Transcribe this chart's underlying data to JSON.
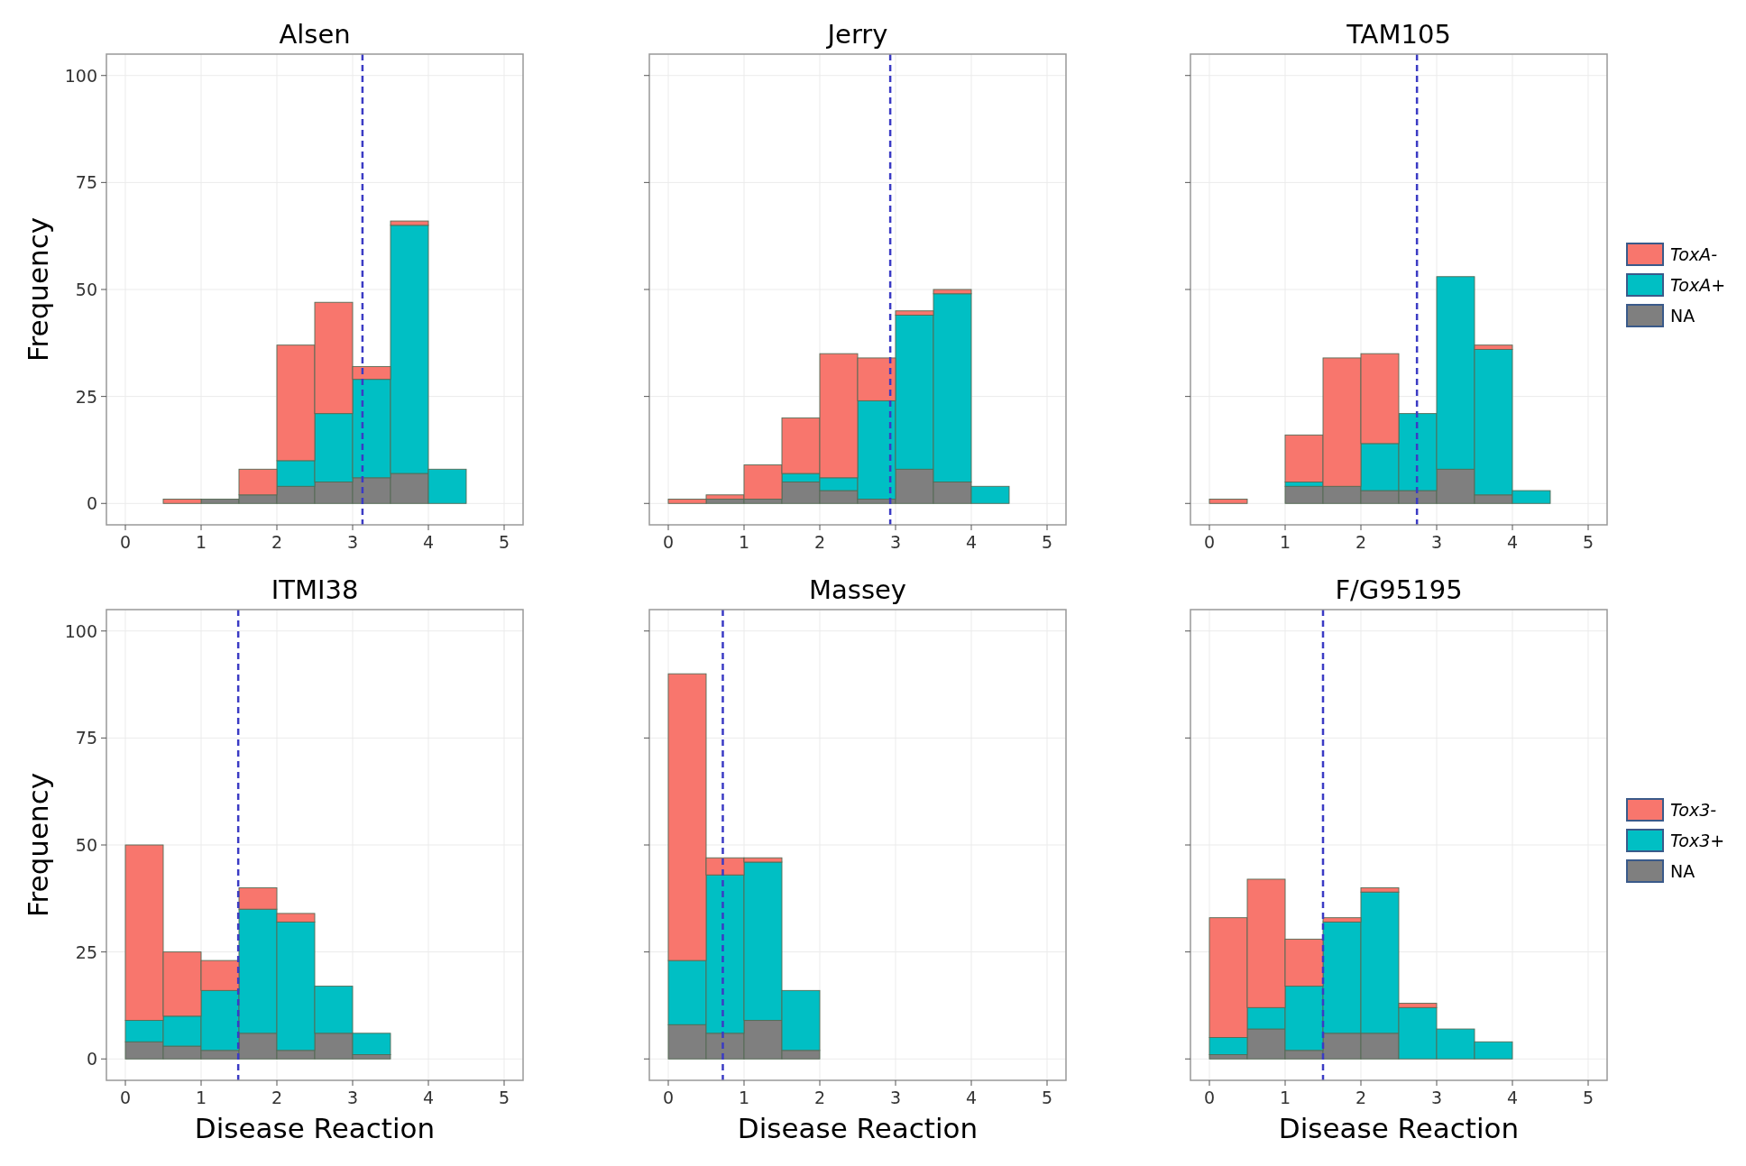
{
  "chart_data": [
    {
      "type": "bar",
      "title": "Alsen",
      "ylabel": "Frequency",
      "x": [
        0.25,
        0.75,
        1.25,
        1.75,
        2.25,
        2.75,
        3.25,
        3.75,
        4.25,
        4.75
      ],
      "stacked": true,
      "xlim": [
        -0.25,
        5.25
      ],
      "ylim": [
        -5,
        105
      ],
      "xticks": [
        0,
        1,
        2,
        3,
        4,
        5
      ],
      "yticks": [
        0,
        25,
        50,
        75,
        100
      ],
      "grid": true,
      "series": [
        {
          "color": "#7f7f7f",
          "values": [
            0,
            0,
            1,
            2,
            4,
            5,
            6,
            7,
            0,
            0
          ]
        },
        {
          "color": "#00bfc4",
          "values": [
            0,
            0,
            0,
            0,
            6,
            16,
            23,
            58,
            8,
            0
          ]
        },
        {
          "color": "#f8766d",
          "values": [
            0,
            1,
            0,
            6,
            27,
            26,
            3,
            1,
            0,
            0
          ]
        }
      ],
      "ref_lines": [
        {
          "axis": "x",
          "value": 3.13,
          "color": "#3b3bc4",
          "line_style": "dashed"
        }
      ]
    },
    {
      "type": "bar",
      "title": "Jerry",
      "x": [
        0.25,
        0.75,
        1.25,
        1.75,
        2.25,
        2.75,
        3.25,
        3.75,
        4.25,
        4.75
      ],
      "stacked": true,
      "xlim": [
        -0.25,
        5.25
      ],
      "ylim": [
        -5,
        105
      ],
      "xticks": [
        0,
        1,
        2,
        3,
        4,
        5
      ],
      "yticks": [
        0,
        25,
        50,
        75,
        100
      ],
      "grid": true,
      "tick_labels": "x",
      "series": [
        {
          "color": "#7f7f7f",
          "values": [
            0,
            1,
            1,
            5,
            3,
            1,
            8,
            5,
            0,
            0
          ]
        },
        {
          "color": "#00bfc4",
          "values": [
            0,
            0,
            0,
            2,
            3,
            23,
            36,
            44,
            4,
            0
          ]
        },
        {
          "color": "#f8766d",
          "values": [
            1,
            1,
            8,
            13,
            29,
            10,
            1,
            1,
            0,
            0
          ]
        }
      ],
      "ref_lines": [
        {
          "axis": "x",
          "value": 2.93,
          "color": "#3b3bc4",
          "line_style": "dashed"
        }
      ]
    },
    {
      "type": "bar",
      "title": "TAM105",
      "x": [
        0.25,
        0.75,
        1.25,
        1.75,
        2.25,
        2.75,
        3.25,
        3.75,
        4.25,
        4.75
      ],
      "stacked": true,
      "xlim": [
        -0.25,
        5.25
      ],
      "ylim": [
        -5,
        105
      ],
      "xticks": [
        0,
        1,
        2,
        3,
        4,
        5
      ],
      "yticks": [
        0,
        25,
        50,
        75,
        100
      ],
      "grid": true,
      "tick_labels": "x",
      "legend": "right",
      "series": [
        {
          "name": "NA",
          "color": "#7f7f7f",
          "values": [
            0,
            0,
            4,
            4,
            3,
            3,
            8,
            2,
            0,
            0
          ]
        },
        {
          "name": "ToxA+",
          "color": "#00bfc4",
          "values": [
            0,
            0,
            1,
            0,
            11,
            18,
            45,
            34,
            3,
            0
          ]
        },
        {
          "name": "ToxA-",
          "color": "#f8766d",
          "values": [
            1,
            0,
            11,
            30,
            21,
            0,
            0,
            1,
            0,
            0
          ]
        }
      ],
      "ref_lines": [
        {
          "axis": "x",
          "value": 2.74,
          "color": "#3b3bc4",
          "line_style": "dashed"
        }
      ]
    },
    {
      "type": "bar",
      "title": "ITMI38",
      "xlabel": "Disease Reaction",
      "ylabel": "Frequency",
      "x": [
        0.25,
        0.75,
        1.25,
        1.75,
        2.25,
        2.75,
        3.25,
        3.75,
        4.25,
        4.75
      ],
      "stacked": true,
      "xlim": [
        -0.25,
        5.25
      ],
      "ylim": [
        -5,
        105
      ],
      "xticks": [
        0,
        1,
        2,
        3,
        4,
        5
      ],
      "yticks": [
        0,
        25,
        50,
        75,
        100
      ],
      "grid": true,
      "series": [
        {
          "color": "#7f7f7f",
          "values": [
            4,
            3,
            2,
            6,
            2,
            6,
            1,
            0,
            0,
            0
          ]
        },
        {
          "color": "#00bfc4",
          "values": [
            5,
            7,
            14,
            29,
            30,
            11,
            5,
            0,
            0,
            0
          ]
        },
        {
          "color": "#f8766d",
          "values": [
            41,
            15,
            7,
            5,
            2,
            0,
            0,
            0,
            0,
            0
          ]
        }
      ],
      "ref_lines": [
        {
          "axis": "x",
          "value": 1.49,
          "color": "#3b3bc4",
          "line_style": "dashed"
        }
      ]
    },
    {
      "type": "bar",
      "title": "Massey",
      "xlabel": "Disease Reaction",
      "x": [
        0.25,
        0.75,
        1.25,
        1.75,
        2.25,
        2.75,
        3.25,
        3.75,
        4.25,
        4.75
      ],
      "stacked": true,
      "xlim": [
        -0.25,
        5.25
      ],
      "ylim": [
        -5,
        105
      ],
      "xticks": [
        0,
        1,
        2,
        3,
        4,
        5
      ],
      "yticks": [
        0,
        25,
        50,
        75,
        100
      ],
      "grid": true,
      "tick_labels": "x",
      "series": [
        {
          "color": "#7f7f7f",
          "values": [
            8,
            6,
            9,
            2,
            0,
            0,
            0,
            0,
            0,
            0
          ]
        },
        {
          "color": "#00bfc4",
          "values": [
            15,
            37,
            37,
            14,
            0,
            0,
            0,
            0,
            0,
            0
          ]
        },
        {
          "color": "#f8766d",
          "values": [
            67,
            4,
            1,
            0,
            0,
            0,
            0,
            0,
            0,
            0
          ]
        }
      ],
      "ref_lines": [
        {
          "axis": "x",
          "value": 0.72,
          "color": "#3b3bc4",
          "line_style": "dashed"
        }
      ]
    },
    {
      "type": "bar",
      "title": "F/G95195",
      "xlabel": "Disease Reaction",
      "x": [
        0.25,
        0.75,
        1.25,
        1.75,
        2.25,
        2.75,
        3.25,
        3.75,
        4.25,
        4.75
      ],
      "stacked": true,
      "xlim": [
        -0.25,
        5.25
      ],
      "ylim": [
        -5,
        105
      ],
      "xticks": [
        0,
        1,
        2,
        3,
        4,
        5
      ],
      "yticks": [
        0,
        25,
        50,
        75,
        100
      ],
      "grid": true,
      "tick_labels": "x",
      "legend": "right",
      "series": [
        {
          "name": "NA",
          "color": "#7f7f7f",
          "values": [
            1,
            7,
            2,
            6,
            6,
            0,
            0,
            0,
            0,
            0
          ]
        },
        {
          "name": "Tox3+",
          "color": "#00bfc4",
          "values": [
            4,
            5,
            15,
            26,
            33,
            12,
            7,
            4,
            0,
            0
          ]
        },
        {
          "name": "Tox3-",
          "color": "#f8766d",
          "values": [
            28,
            30,
            11,
            1,
            1,
            1,
            0,
            0,
            0,
            0
          ]
        }
      ],
      "ref_lines": [
        {
          "axis": "x",
          "value": 1.5,
          "color": "#3b3bc4",
          "line_style": "dashed"
        }
      ]
    }
  ]
}
